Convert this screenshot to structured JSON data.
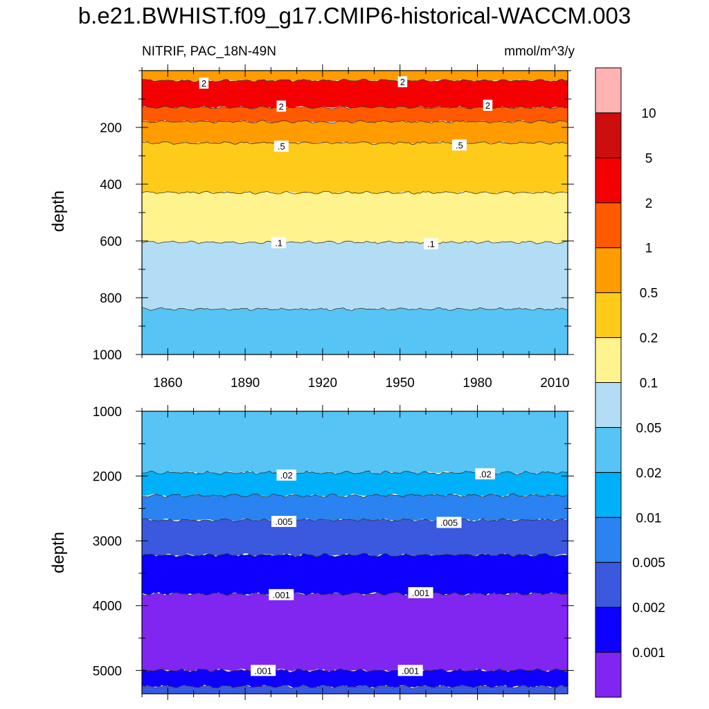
{
  "title": "b.e21.BWHIST.f09_g17.CMIP6-historical-WACCM.003",
  "subtitle_left": "NITRIF, PAC_18N-49N",
  "subtitle_right": "mmol/m^3/y",
  "chart_data": {
    "type": "contour",
    "x_range": [
      1850,
      2015
    ],
    "x_ticks": [
      1860,
      1890,
      1920,
      1950,
      1980,
      2010
    ],
    "colorbar": {
      "levels": [
        "0.001",
        "0.002",
        "0.005",
        "0.01",
        "0.02",
        "0.05",
        "0.1",
        "0.2",
        "0.5",
        "1",
        "2",
        "5",
        "10"
      ],
      "colors": [
        "#8026F0",
        "#0D00FF",
        "#3A59DF",
        "#2A83F0",
        "#00B0F8",
        "#56C4F4",
        "#B2DDF4",
        "#FFF38E",
        "#FFCB1A",
        "#FF9C00",
        "#FF5A00",
        "#F50000",
        "#CC0E0E",
        "#FFB3B3"
      ]
    },
    "panels": [
      {
        "name": "upper",
        "ylabel": "depth",
        "y_range": [
          0,
          1000
        ],
        "y_ticks": [
          200,
          400,
          600,
          800,
          1000
        ],
        "bands": [
          {
            "top": 0,
            "bottom": 35,
            "color": "#FF9C00"
          },
          {
            "top": 35,
            "bottom": 130,
            "color": "#F50000"
          },
          {
            "top": 130,
            "bottom": 180,
            "color": "#FF5A00"
          },
          {
            "top": 180,
            "bottom": 255,
            "color": "#FF9C00"
          },
          {
            "top": 255,
            "bottom": 430,
            "color": "#FFCB1A"
          },
          {
            "top": 430,
            "bottom": 605,
            "color": "#FFF38E"
          },
          {
            "top": 605,
            "bottom": 840,
            "color": "#B2DDF4"
          },
          {
            "top": 840,
            "bottom": 1000,
            "color": "#56C4F4"
          }
        ],
        "contour_labels": [
          {
            "text": "2",
            "x": 1874,
            "y": 44
          },
          {
            "text": "2",
            "x": 1951,
            "y": 39
          },
          {
            "text": "2",
            "x": 1904,
            "y": 125
          },
          {
            "text": "2",
            "x": 1984,
            "y": 122
          },
          {
            "text": ".5",
            "x": 1904,
            "y": 266
          },
          {
            "text": ".5",
            "x": 1973,
            "y": 262
          },
          {
            "text": ".1",
            "x": 1903,
            "y": 606
          },
          {
            "text": ".1",
            "x": 1962,
            "y": 610
          }
        ]
      },
      {
        "name": "lower",
        "ylabel": "depth",
        "y_range": [
          1000,
          5360
        ],
        "y_ticks": [
          1000,
          2000,
          3000,
          4000,
          5000
        ],
        "bands": [
          {
            "top": 1000,
            "bottom": 1950,
            "color": "#56C4F4"
          },
          {
            "top": 1950,
            "bottom": 2300,
            "color": "#00B0F8"
          },
          {
            "top": 2300,
            "bottom": 2680,
            "color": "#2A83F0"
          },
          {
            "top": 2680,
            "bottom": 3220,
            "color": "#3A59DF"
          },
          {
            "top": 3220,
            "bottom": 3820,
            "color": "#0D00FF"
          },
          {
            "top": 3820,
            "bottom": 5000,
            "color": "#8026F0"
          },
          {
            "top": 5000,
            "bottom": 5250,
            "color": "#0D00FF"
          },
          {
            "top": 5250,
            "bottom": 5360,
            "color": "#3A59DF"
          }
        ],
        "contour_labels": [
          {
            "text": ".02",
            "x": 1906,
            "y": 1985
          },
          {
            "text": ".02",
            "x": 1983,
            "y": 1965
          },
          {
            "text": ".005",
            "x": 1905,
            "y": 2700
          },
          {
            "text": ".005",
            "x": 1969,
            "y": 2715
          },
          {
            "text": ".001",
            "x": 1904,
            "y": 3830
          },
          {
            "text": ".001",
            "x": 1958,
            "y": 3800
          },
          {
            "text": ".001",
            "x": 1897,
            "y": 5000
          },
          {
            "text": ".001",
            "x": 1954,
            "y": 5000
          }
        ]
      }
    ]
  }
}
